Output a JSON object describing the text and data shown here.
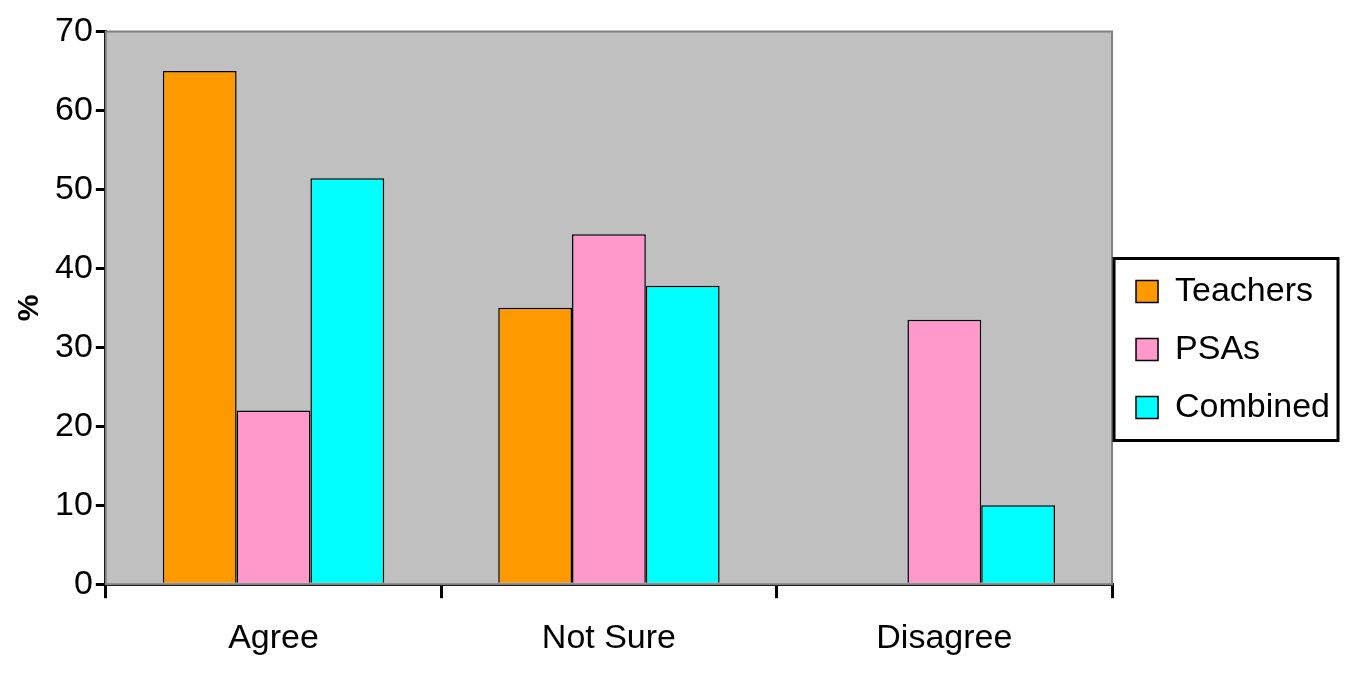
{
  "chart_data": {
    "type": "bar",
    "ylabel": "%",
    "categories": [
      "Agree",
      "Not Sure",
      "Disagree"
    ],
    "series": [
      {
        "name": "Teachers",
        "color": "#ff9900",
        "values": [
          65,
          35,
          0
        ]
      },
      {
        "name": "PSAs",
        "color": "#ff99cc",
        "values": [
          22,
          44.3,
          33.5
        ]
      },
      {
        "name": "Combined",
        "color": "#00ffff",
        "values": [
          51.4,
          37.8,
          10
        ]
      }
    ],
    "ylim": [
      0,
      70
    ],
    "yticks": [
      0,
      10,
      20,
      30,
      40,
      50,
      60,
      70
    ],
    "grid": false,
    "legend": "right"
  }
}
